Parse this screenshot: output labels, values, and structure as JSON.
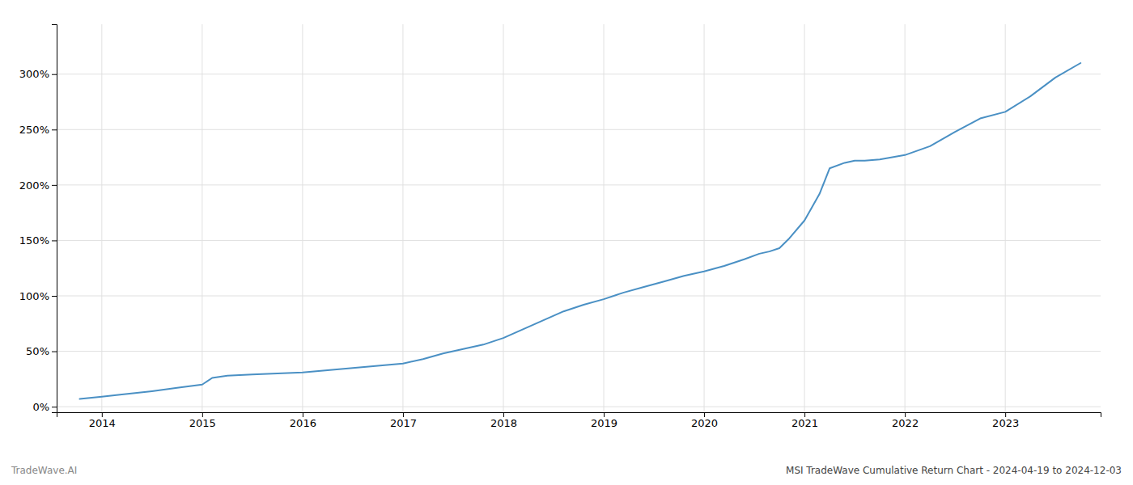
{
  "chart_data": {
    "type": "line",
    "annotations": [
      "TradeWave.AI",
      "MSI TradeWave Cumulative Return Chart - 2024-04-19 to 2024-12-03"
    ],
    "x": [
      2013.78,
      2014.0,
      2014.2,
      2014.5,
      2014.75,
      2015.0,
      2015.1,
      2015.25,
      2015.5,
      2015.75,
      2016.0,
      2016.25,
      2016.5,
      2016.75,
      2017.0,
      2017.2,
      2017.4,
      2017.6,
      2017.8,
      2018.0,
      2018.2,
      2018.4,
      2018.6,
      2018.8,
      2019.0,
      2019.2,
      2019.4,
      2019.6,
      2019.8,
      2020.0,
      2020.2,
      2020.4,
      2020.55,
      2020.65,
      2020.75,
      2020.85,
      2021.0,
      2021.15,
      2021.25,
      2021.4,
      2021.5,
      2021.6,
      2021.75,
      2022.0,
      2022.25,
      2022.5,
      2022.75,
      2023.0,
      2023.25,
      2023.5,
      2023.75
    ],
    "values": [
      0.07,
      0.09,
      0.11,
      0.14,
      0.17,
      0.2,
      0.26,
      0.28,
      0.29,
      0.3,
      0.31,
      0.33,
      0.35,
      0.37,
      0.39,
      0.43,
      0.48,
      0.52,
      0.56,
      0.62,
      0.7,
      0.78,
      0.86,
      0.92,
      0.97,
      1.03,
      1.08,
      1.13,
      1.18,
      1.22,
      1.27,
      1.33,
      1.38,
      1.4,
      1.43,
      1.52,
      1.68,
      1.92,
      2.15,
      2.2,
      2.22,
      2.22,
      2.23,
      2.27,
      2.35,
      2.48,
      2.6,
      2.66,
      2.8,
      2.97,
      3.1
    ],
    "color": "#4a90c4",
    "xlim": [
      2013.55,
      2023.95
    ],
    "xticks": [
      2014,
      2015,
      2016,
      2017,
      2018,
      2019,
      2020,
      2021,
      2022,
      2023
    ],
    "ylim": [
      -0.05,
      3.45
    ],
    "yticks": [
      {
        "value": 0.0,
        "label": "0%"
      },
      {
        "value": 0.5,
        "label": "50%"
      },
      {
        "value": 1.0,
        "label": "100%"
      },
      {
        "value": 1.5,
        "label": "150%"
      },
      {
        "value": 2.0,
        "label": "200%"
      },
      {
        "value": 2.5,
        "label": "250%"
      },
      {
        "value": 3.0,
        "label": "300%"
      }
    ],
    "grid": true
  }
}
